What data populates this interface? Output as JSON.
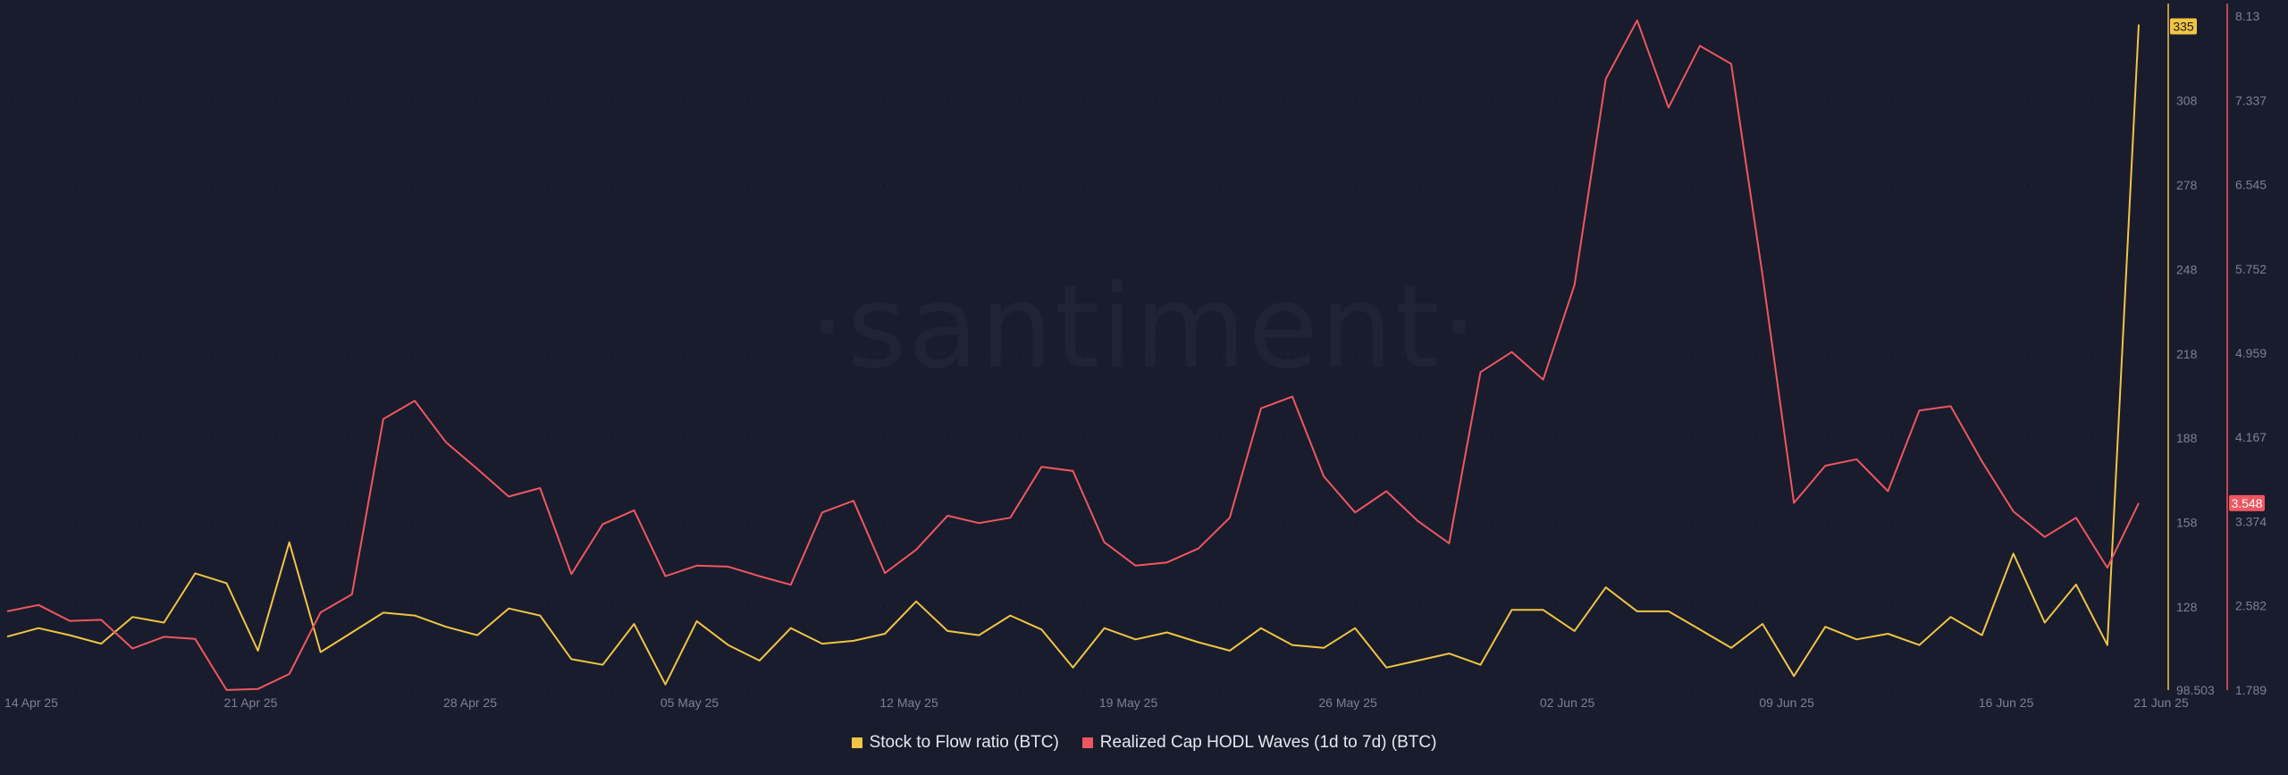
{
  "watermark": "·santiment·",
  "colors": {
    "background": "#181c2d",
    "stock_to_flow": "#f2c443",
    "hodl_waves": "#f0565f",
    "axis_text": "#7b8194",
    "grid": "#222639"
  },
  "legend": [
    {
      "label": "Stock to Flow ratio (BTC)",
      "color": "#f2c443"
    },
    {
      "label": "Realized Cap HODL Waves (1d to 7d) (BTC)",
      "color": "#f0565f"
    }
  ],
  "chart_data": {
    "type": "line",
    "x_tick_labels": [
      "14 Apr 25",
      "21 Apr 25",
      "28 Apr 25",
      "05 May 25",
      "12 May 25",
      "19 May 25",
      "26 May 25",
      "02 Jun 25",
      "09 Jun 25",
      "16 Jun 25",
      "21 Jun 25"
    ],
    "x_start": "2025-04-14",
    "x_end": "2025-06-21",
    "left_axis": {
      "ticks": [
        "98.503",
        "128",
        "158",
        "188",
        "218",
        "248",
        "278",
        "308"
      ],
      "ylim": [
        98.503,
        338
      ],
      "last_value_badge": "335",
      "badge_color": "#f2c443"
    },
    "right_axis": {
      "ticks": [
        "1.789",
        "2.582",
        "3.374",
        "4.167",
        "4.959",
        "5.752",
        "6.545",
        "7.337",
        "8.13"
      ],
      "ylim": [
        1.789,
        8.13
      ],
      "last_value_badge": "3.548",
      "badge_color": "#f0565f"
    },
    "series": [
      {
        "name": "Stock to Flow ratio (BTC)",
        "axis": "left",
        "values": [
          117.5,
          120.5,
          118,
          115,
          124.5,
          122.5,
          140,
          136.5,
          112.5,
          151,
          112,
          119,
          126,
          125,
          121,
          118,
          127.5,
          125,
          109.5,
          107.5,
          122,
          100.5,
          123,
          114.5,
          109,
          120.5,
          115,
          116,
          118.5,
          130,
          119.5,
          118,
          125,
          120,
          106.5,
          120.5,
          116.5,
          119,
          115.5,
          112.5,
          120.5,
          114.5,
          113.5,
          120.5,
          106.5,
          109,
          111.5,
          107.5,
          127,
          127,
          119.5,
          135,
          126.5,
          126.5,
          120,
          113.5,
          122,
          103.5,
          121,
          116.5,
          118.5,
          114.5,
          124.5,
          118,
          147,
          122.5,
          136,
          114.5,
          335
        ]
      },
      {
        "name": "Realized Cap HODL Waves (1d to 7d) (BTC)",
        "axis": "right",
        "values": [
          2.53,
          2.59,
          2.44,
          2.45,
          2.18,
          2.29,
          2.27,
          1.79,
          1.8,
          1.94,
          2.52,
          2.69,
          4.34,
          4.51,
          4.12,
          3.87,
          3.61,
          3.69,
          2.88,
          3.35,
          3.48,
          2.86,
          2.96,
          2.95,
          2.86,
          2.78,
          3.46,
          3.57,
          2.89,
          3.11,
          3.43,
          3.36,
          3.41,
          3.89,
          3.85,
          3.18,
          2.96,
          2.99,
          3.12,
          3.41,
          4.44,
          4.55,
          3.8,
          3.46,
          3.66,
          3.38,
          3.17,
          4.78,
          4.97,
          4.71,
          5.6,
          7.54,
          8.09,
          7.27,
          7.85,
          7.68,
          5.69,
          3.55,
          3.9,
          3.96,
          3.66,
          4.42,
          4.46,
          3.94,
          3.47,
          3.23,
          3.41,
          2.94,
          3.548
        ]
      }
    ],
    "grid": true,
    "legend_position": "bottom-center"
  }
}
